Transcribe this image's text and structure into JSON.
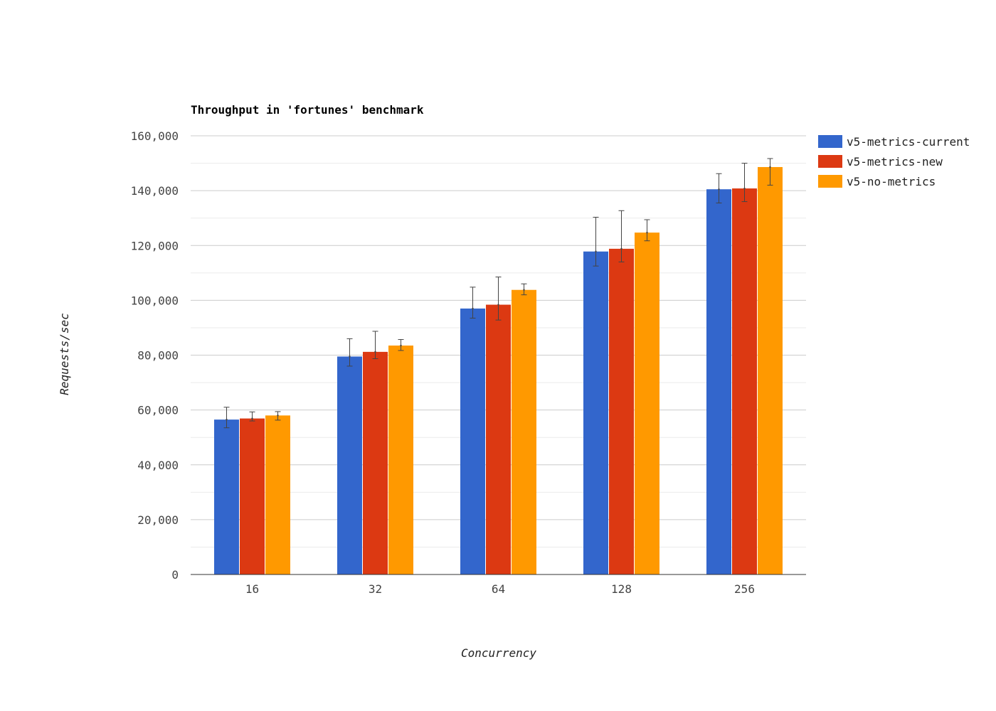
{
  "chart_data": {
    "type": "bar",
    "title": "Throughput in 'fortunes' benchmark",
    "xlabel": "Concurrency",
    "ylabel": "Requests/sec",
    "categories": [
      "16",
      "32",
      "64",
      "128",
      "256"
    ],
    "ylim": [
      0,
      160000
    ],
    "yticks": [
      0,
      20000,
      40000,
      60000,
      80000,
      100000,
      120000,
      140000,
      160000
    ],
    "ytick_labels": [
      "0",
      "20,000",
      "40,000",
      "60,000",
      "80,000",
      "100,000",
      "120,000",
      "140,000",
      "160,000"
    ],
    "grid": true,
    "legend_position": "right",
    "series": [
      {
        "name": "v5-metrics-current",
        "color": "#3366cc",
        "values": [
          56500,
          79500,
          97000,
          117800,
          140500
        ],
        "error_low": [
          53500,
          76000,
          93500,
          112500,
          135500
        ],
        "error_high": [
          61000,
          86000,
          104800,
          130300,
          146200
        ]
      },
      {
        "name": "v5-metrics-new",
        "color": "#dc3912",
        "values": [
          56900,
          81200,
          98400,
          118800,
          140800
        ],
        "error_low": [
          56000,
          78700,
          92800,
          114000,
          136000
        ],
        "error_high": [
          59300,
          88700,
          108500,
          132700,
          150000
        ]
      },
      {
        "name": "v5-no-metrics",
        "color": "#ff9900",
        "values": [
          58000,
          83500,
          103800,
          124700,
          148600
        ],
        "error_low": [
          56300,
          81700,
          102000,
          121700,
          142000
        ],
        "error_high": [
          59400,
          85700,
          106000,
          129400,
          151700
        ]
      }
    ]
  }
}
